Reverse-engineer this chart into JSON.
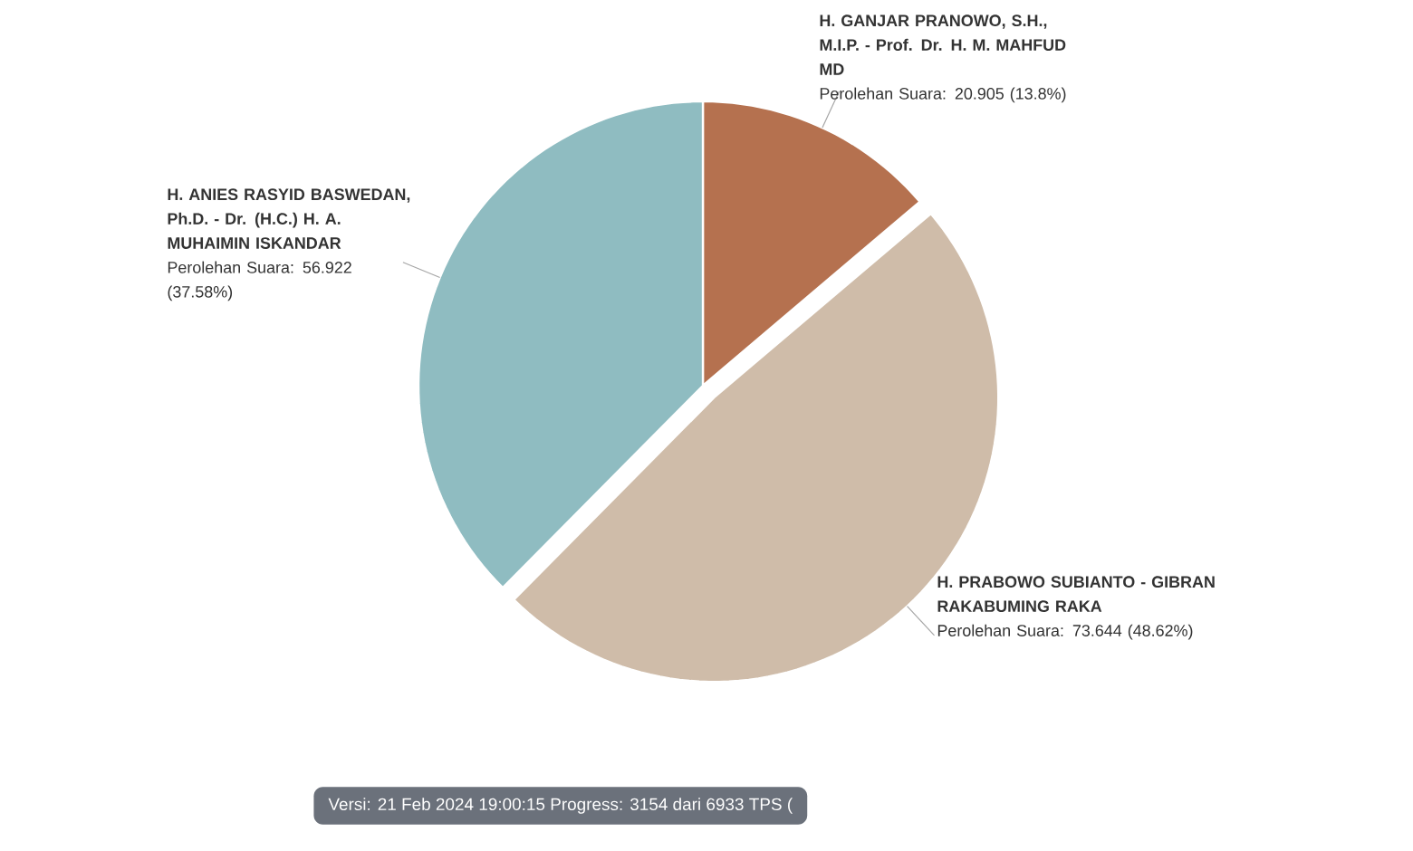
{
  "chart_data": {
    "type": "pie",
    "categories": [
      "H. GANJAR PRANOWO, S.H., M.I.P. - Prof. Dr. H. M. MAHFUD MD",
      "H. PRABOWO SUBIANTO - GIBRAN RAKABUMING RAKA",
      "H. ANIES RASYID BASWEDAN, Ph.D. - Dr. (H.C.) H. A. MUHAIMIN ISKANDAR"
    ],
    "values": [
      20.905,
      73.644,
      56.922
    ],
    "value_labels": [
      "Perolehan Suara: 20.905 (13.8%)",
      "Perolehan Suara: 73.644 (48.62%)",
      "Perolehan Suara: 56.922 (37.58%)"
    ],
    "colors": [
      "#b5714f",
      "#cfbca9",
      "#8fbcc1"
    ],
    "annotations": [
      "Versi: 21 Feb 2024 19:00:15 Progress: 3154 dari 6933 TPS ("
    ]
  }
}
